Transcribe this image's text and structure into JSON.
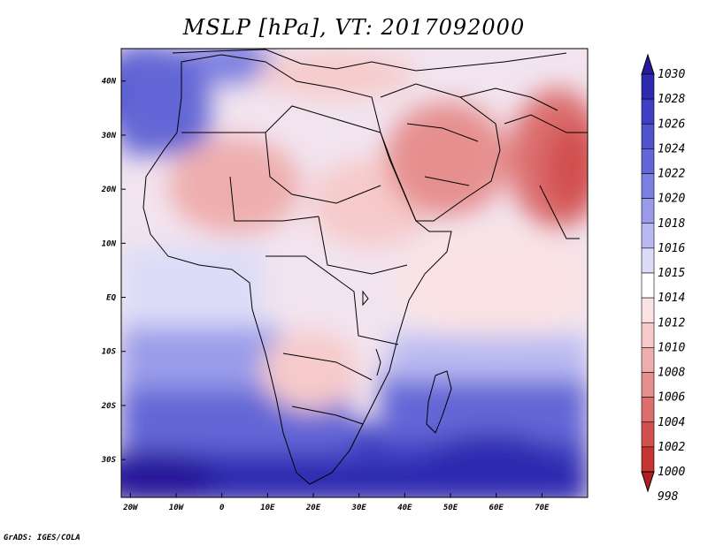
{
  "title": "MSLP [hPa], VT: 2017092000",
  "credit": "GrADS: IGES/COLA",
  "map": {
    "lon_range": [
      -22,
      80
    ],
    "lat_range": [
      -37,
      46
    ],
    "lon_ticks": [
      {
        "value": -20,
        "label": "20W"
      },
      {
        "value": -10,
        "label": "10W"
      },
      {
        "value": 0,
        "label": "0"
      },
      {
        "value": 10,
        "label": "10E"
      },
      {
        "value": 20,
        "label": "20E"
      },
      {
        "value": 30,
        "label": "30E"
      },
      {
        "value": 40,
        "label": "40E"
      },
      {
        "value": 50,
        "label": "50E"
      },
      {
        "value": 60,
        "label": "60E"
      },
      {
        "value": 70,
        "label": "70E"
      }
    ],
    "lat_ticks": [
      {
        "value": 40,
        "label": "40N"
      },
      {
        "value": 30,
        "label": "30N"
      },
      {
        "value": 20,
        "label": "20N"
      },
      {
        "value": 10,
        "label": "10N"
      },
      {
        "value": 0,
        "label": "EQ"
      },
      {
        "value": -10,
        "label": "10S"
      },
      {
        "value": -20,
        "label": "20S"
      },
      {
        "value": -30,
        "label": "30S"
      }
    ]
  },
  "colorbar": {
    "levels": [
      "1030",
      "1028",
      "1026",
      "1024",
      "1022",
      "1020",
      "1018",
      "1016",
      "1015",
      "1014",
      "1012",
      "1010",
      "1008",
      "1006",
      "1004",
      "1002",
      "1000",
      "998"
    ],
    "colors": [
      "#28189a",
      "#2e2ab0",
      "#3e3fc2",
      "#4f54cc",
      "#6366d6",
      "#7c7fe0",
      "#9a9cea",
      "#b9baf2",
      "#dcdcf8",
      "#ffffff",
      "#fbe3e3",
      "#f6caca",
      "#efaeae",
      "#e68f8f",
      "#dc6e6e",
      "#d24f4f",
      "#c63434",
      "#b41e1e"
    ]
  },
  "field": {
    "highs": [
      {
        "lon": -18,
        "lat": 38,
        "value": 1024
      },
      {
        "lon": 58,
        "lat": -31,
        "value": 1026
      },
      {
        "lon": -5,
        "lat": -35,
        "value": 1028
      }
    ],
    "lows": [
      {
        "lon": 75,
        "lat": 25,
        "value": 1002
      },
      {
        "lon": 50,
        "lat": 25,
        "value": 1004
      },
      {
        "lon": 0,
        "lat": 21,
        "value": 1008
      }
    ]
  }
}
